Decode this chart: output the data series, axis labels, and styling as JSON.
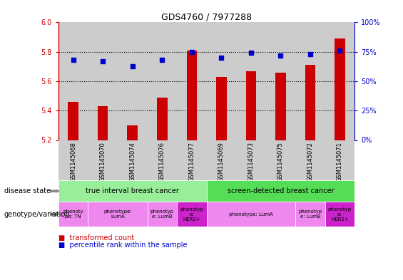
{
  "title": "GDS4760 / 7977288",
  "samples": [
    "GSM1145068",
    "GSM1145070",
    "GSM1145074",
    "GSM1145076",
    "GSM1145077",
    "GSM1145069",
    "GSM1145073",
    "GSM1145075",
    "GSM1145072",
    "GSM1145071"
  ],
  "bar_values": [
    5.46,
    5.43,
    5.3,
    5.49,
    5.81,
    5.63,
    5.67,
    5.66,
    5.71,
    5.89
  ],
  "bar_bottom": 5.2,
  "dot_values_pct": [
    68,
    67,
    63,
    68,
    75,
    70,
    74,
    72,
    73,
    76
  ],
  "ylim": [
    5.2,
    6.0
  ],
  "y2lim": [
    0,
    100
  ],
  "y_ticks": [
    5.2,
    5.4,
    5.6,
    5.8,
    6.0
  ],
  "y2_ticks": [
    0,
    25,
    50,
    75,
    100
  ],
  "bar_color": "#cc0000",
  "dot_color": "#0000cc",
  "col_bg_color": "#cccccc",
  "disease_state_row": [
    {
      "label": "true interval breast cancer",
      "start": 0,
      "end": 4,
      "color": "#99ee99"
    },
    {
      "label": "screen-detected breast cancer",
      "start": 5,
      "end": 9,
      "color": "#55dd55"
    }
  ],
  "genotype_row": [
    {
      "label": "phenoty\npe: TN",
      "start": 0,
      "end": 0,
      "color": "#ee88ee"
    },
    {
      "label": "phenotype:\nLumA",
      "start": 1,
      "end": 2,
      "color": "#ee88ee"
    },
    {
      "label": "phenotyp\ne: LumB",
      "start": 3,
      "end": 3,
      "color": "#ee88ee"
    },
    {
      "label": "phenotyp\ne:\nHER2+",
      "start": 4,
      "end": 4,
      "color": "#cc22cc"
    },
    {
      "label": "phenotype: LumA",
      "start": 5,
      "end": 7,
      "color": "#ee88ee"
    },
    {
      "label": "phenotyp\ne: LumB",
      "start": 8,
      "end": 8,
      "color": "#ee88ee"
    },
    {
      "label": "phenotyp\ne:\nHER2+",
      "start": 9,
      "end": 9,
      "color": "#cc22cc"
    }
  ],
  "legend_items": [
    {
      "label": "transformed count",
      "color": "#cc0000"
    },
    {
      "label": "percentile rank within the sample",
      "color": "#0000cc"
    }
  ],
  "disease_label": "disease state",
  "genotype_label": "genotype/variation",
  "tick_color_left": "#cc0000",
  "tick_color_right": "#0000cc",
  "n_samples": 10
}
